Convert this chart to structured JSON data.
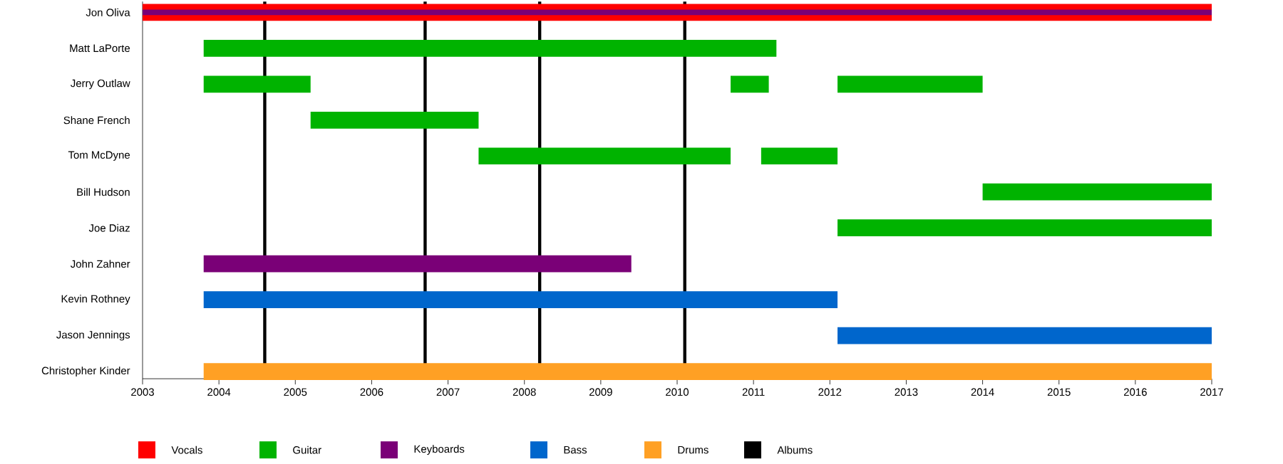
{
  "chart_data": {
    "type": "bar",
    "orientation": "horizontal",
    "categories": [
      "Jon Oliva",
      "Matt LaPorte",
      "Jerry Outlaw",
      "Shane French",
      "Tom McDyne",
      "Bill Hudson",
      "Joe Diaz",
      "John Zahner",
      "Kevin Rothney",
      "Jason Jennings",
      "Christopher Kinder"
    ],
    "xlim": [
      2003,
      2017
    ],
    "xticks": [
      2003,
      2004,
      2005,
      2006,
      2007,
      2008,
      2009,
      2010,
      2011,
      2012,
      2013,
      2014,
      2015,
      2016,
      2017
    ],
    "series": [
      {
        "name": "Vocals",
        "color": "#ff0000",
        "base": [
          2003,
          null,
          null,
          null,
          null,
          null,
          null,
          null,
          null,
          null,
          null
        ],
        "values": [
          14,
          null,
          null,
          null,
          null,
          null,
          null,
          null,
          null,
          null,
          null
        ]
      },
      {
        "name": "Guitar",
        "color": "#00b300",
        "base": [
          null,
          2003.8,
          2003.8,
          2005.2,
          2007.4,
          2014.0,
          2012.1,
          null,
          null,
          null,
          null
        ],
        "values": [
          null,
          7.5,
          1.4,
          2.2,
          3.3,
          3.0,
          4.9,
          null,
          null,
          null,
          null
        ]
      },
      {
        "color": "#00b300",
        "base": [
          null,
          null,
          2010.7,
          null,
          2011.1,
          null,
          null,
          null,
          null,
          null,
          null
        ],
        "values": [
          null,
          null,
          0.5,
          null,
          1.0,
          null,
          null,
          null,
          null,
          null,
          null
        ]
      },
      {
        "color": "#00b300",
        "base": [
          null,
          null,
          2012.1,
          null,
          null,
          null,
          null,
          null,
          null,
          null,
          null
        ],
        "values": [
          null,
          null,
          1.9,
          null,
          null,
          null,
          null,
          null,
          null,
          null,
          null
        ]
      },
      {
        "name": "Keyboards",
        "color": "#7a0077",
        "base": [
          2003,
          null,
          null,
          null,
          null,
          null,
          null,
          2003.8,
          null,
          null,
          null
        ],
        "values": [
          14,
          null,
          null,
          null,
          null,
          null,
          null,
          5.6,
          null,
          null,
          null
        ]
      },
      {
        "name": "Bass",
        "color": "#0066cc",
        "base": [
          null,
          null,
          null,
          null,
          null,
          null,
          null,
          null,
          2003.8,
          2012.1,
          null
        ],
        "values": [
          null,
          null,
          null,
          null,
          null,
          null,
          null,
          null,
          8.3,
          4.9,
          null
        ]
      },
      {
        "name": "Drums",
        "color": "#ffa024",
        "base": [
          null,
          null,
          null,
          null,
          null,
          null,
          null,
          null,
          null,
          null,
          2003.8
        ],
        "values": [
          null,
          null,
          null,
          null,
          null,
          null,
          null,
          null,
          null,
          null,
          13.2
        ]
      }
    ],
    "ref_lines": [
      {
        "axis": "x",
        "value": 2004.6,
        "color": "#000000",
        "label": "Albums"
      },
      {
        "axis": "x",
        "value": 2006.7,
        "color": "#000000"
      },
      {
        "axis": "x",
        "value": 2008.2,
        "color": "#000000"
      },
      {
        "axis": "x",
        "value": 2010.1,
        "color": "#000000"
      }
    ],
    "legend": "bottom"
  }
}
